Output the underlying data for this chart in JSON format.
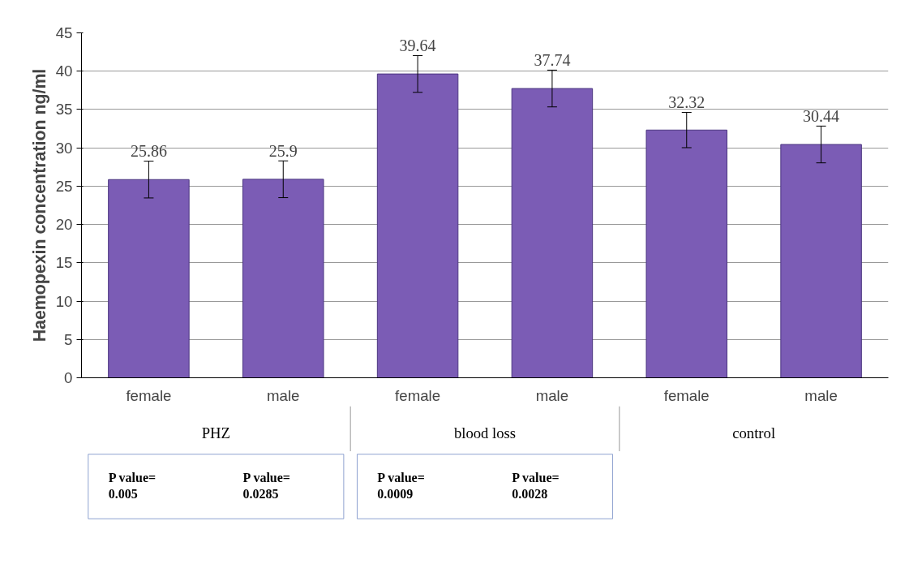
{
  "chart_data": {
    "type": "bar",
    "ylabel": "Haemopexin concentration ng/ml",
    "categories": [
      "female",
      "male",
      "female",
      "male",
      "female",
      "male"
    ],
    "values": [
      25.86,
      25.9,
      39.64,
      37.74,
      32.32,
      30.44
    ],
    "errors": [
      2.4,
      2.4,
      2.4,
      2.4,
      2.3,
      2.4
    ],
    "color": "#7b5cb5",
    "ylim": [
      0,
      45
    ],
    "yticks": [
      0,
      5,
      10,
      15,
      20,
      25,
      30,
      35,
      40,
      45
    ],
    "grid": "y",
    "data_labels": true,
    "annotations": [
      "PHZ",
      "blood loss",
      "control",
      "P value=\n0.005",
      "P value=\n0.0285",
      "P value=\n0.0009",
      "P value=\n0.0028"
    ]
  }
}
